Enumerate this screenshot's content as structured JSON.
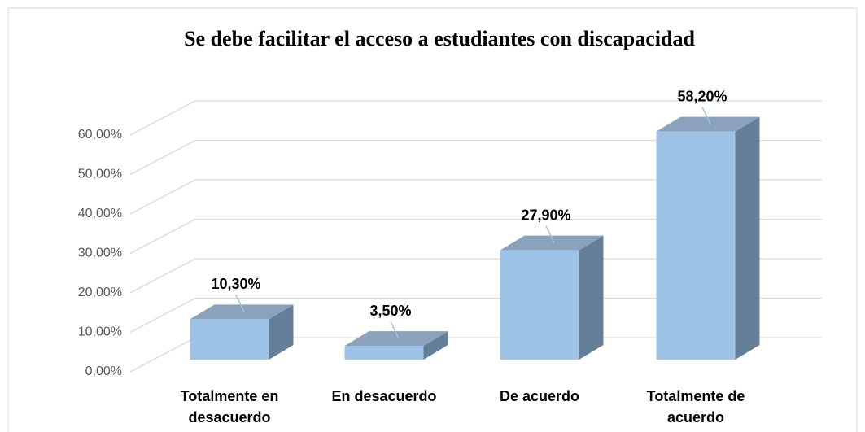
{
  "chart_data": {
    "type": "bar3d",
    "title": "Se debe facilitar el acceso a estudiantes con discapacidad",
    "categories": [
      "Totalmente en desacuerdo",
      "En desacuerdo",
      "De acuerdo",
      "Totalmente de acuerdo"
    ],
    "values": [
      10.3,
      3.5,
      27.9,
      58.2
    ],
    "value_labels": [
      "10,30%",
      "3,50%",
      "27,90%",
      "58,20%"
    ],
    "color": "#9dc3e6",
    "ylim": [
      0,
      60
    ],
    "yticks": [
      {
        "value": 0,
        "label": "0,00%"
      },
      {
        "value": 10,
        "label": "10,00%"
      },
      {
        "value": 20,
        "label": "20,00%"
      },
      {
        "value": 30,
        "label": "30,00%"
      },
      {
        "value": 40,
        "label": "40,00%"
      },
      {
        "value": 50,
        "label": "50,00%"
      },
      {
        "value": 60,
        "label": "60,00%"
      }
    ],
    "grid": true
  }
}
